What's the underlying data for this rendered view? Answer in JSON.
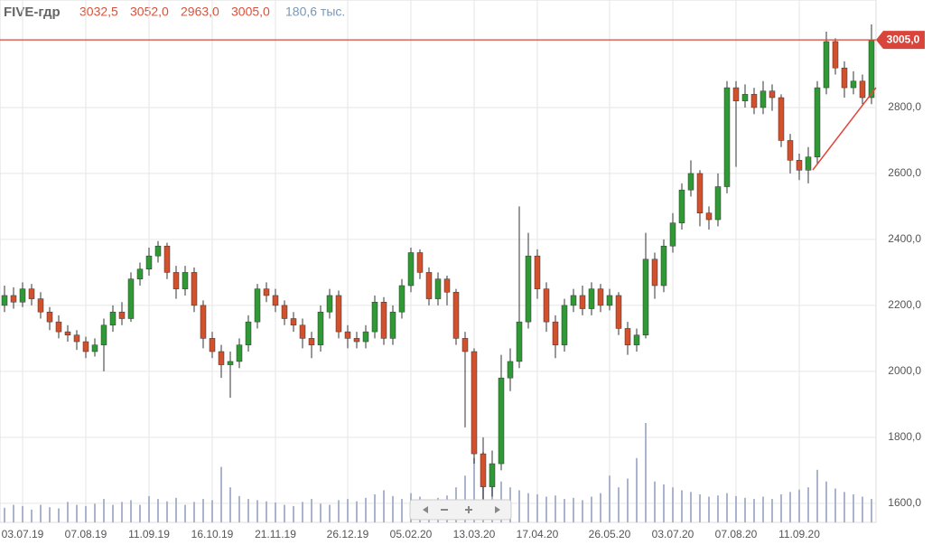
{
  "chart_data": {
    "type": "candlestick",
    "title": "FIVE-гдр",
    "header": {
      "open": {
        "value": 3032.5,
        "label": "3032,5"
      },
      "high": {
        "value": 3052.0,
        "label": "3052,0"
      },
      "low": {
        "value": 2963.0,
        "label": "2963,0"
      },
      "close": {
        "value": 3005.0,
        "label": "3005,0"
      },
      "volume": "180,6 тыс."
    },
    "last_price": {
      "value": 3005.0,
      "label": "3005,0"
    },
    "categories": [
      null,
      null,
      "03.07.19",
      null,
      null,
      null,
      null,
      null,
      null,
      "07.08.19",
      null,
      null,
      null,
      null,
      null,
      null,
      "11.09.19",
      null,
      null,
      null,
      null,
      null,
      null,
      "16.10.19",
      null,
      null,
      null,
      null,
      null,
      null,
      "21.11.19",
      null,
      null,
      null,
      null,
      null,
      null,
      null,
      "26.12.19",
      null,
      null,
      null,
      null,
      null,
      null,
      "05.02.20",
      null,
      null,
      null,
      null,
      null,
      null,
      "13.03.20",
      null,
      null,
      null,
      null,
      null,
      null,
      "17.04.20",
      null,
      null,
      null,
      null,
      null,
      null,
      null,
      "26.05.20",
      null,
      null,
      null,
      null,
      null,
      null,
      "03.07.20",
      null,
      null,
      null,
      null,
      null,
      null,
      "07.08.20",
      null,
      null,
      null,
      null,
      null,
      null,
      "11.09.20",
      null,
      null,
      null,
      null,
      null,
      null,
      null,
      null
    ],
    "open": [
      2200,
      2230,
      2210,
      2250,
      2220,
      2180,
      2150,
      2120,
      2110,
      2090,
      2060,
      2080,
      2140,
      2180,
      2160,
      2280,
      2310,
      2350,
      2380,
      2300,
      2250,
      2300,
      2200,
      2100,
      2060,
      2020,
      2030,
      2080,
      2150,
      2250,
      2230,
      2200,
      2160,
      2140,
      2100,
      2080,
      2180,
      2230,
      2120,
      2100,
      2090,
      2120,
      2210,
      2100,
      2180,
      2260,
      2360,
      2300,
      2220,
      2280,
      2240,
      2100,
      2060,
      1750,
      1650,
      1720,
      1980,
      2030,
      2150,
      2350,
      2250,
      2150,
      2080,
      2200,
      2230,
      2190,
      2250,
      2200,
      2230,
      2130,
      2080,
      2110,
      2340,
      2260,
      2380,
      2450,
      2550,
      2600,
      2480,
      2460,
      2560,
      2860,
      2820,
      2840,
      2800,
      2850,
      2830,
      2700,
      2640,
      2610,
      2650,
      2860,
      3000,
      2920,
      2860,
      2880,
      2830
    ],
    "high": [
      2260,
      2255,
      2270,
      2265,
      2240,
      2195,
      2170,
      2140,
      2125,
      2105,
      2100,
      2160,
      2200,
      2210,
      2300,
      2330,
      2375,
      2395,
      2390,
      2320,
      2320,
      2315,
      2215,
      2120,
      2080,
      2060,
      2100,
      2170,
      2265,
      2270,
      2250,
      2215,
      2180,
      2160,
      2120,
      2200,
      2250,
      2245,
      2140,
      2120,
      2140,
      2230,
      2225,
      2200,
      2280,
      2375,
      2370,
      2315,
      2300,
      2290,
      2250,
      2120,
      2070,
      1800,
      1760,
      2050,
      2070,
      2500,
      2420,
      2370,
      2270,
      2170,
      2220,
      2250,
      2260,
      2270,
      2265,
      2250,
      2240,
      2150,
      2130,
      2420,
      2360,
      2400,
      2480,
      2570,
      2640,
      2610,
      2500,
      2600,
      2880,
      2880,
      2870,
      2860,
      2880,
      2870,
      2840,
      2720,
      2660,
      2680,
      2880,
      3030,
      3010,
      2940,
      2910,
      2900,
      3052
    ],
    "low": [
      2180,
      2190,
      2195,
      2200,
      2160,
      2125,
      2100,
      2090,
      2065,
      2040,
      2045,
      2000,
      2120,
      2140,
      2150,
      2260,
      2290,
      2330,
      2280,
      2220,
      2230,
      2180,
      2070,
      2040,
      1980,
      1920,
      2010,
      2060,
      2130,
      2210,
      2180,
      2140,
      2120,
      2070,
      2040,
      2060,
      2160,
      2100,
      2070,
      2070,
      2070,
      2100,
      2080,
      2080,
      2160,
      2240,
      2280,
      2200,
      2200,
      2200,
      2080,
      1830,
      1720,
      1610,
      1620,
      1700,
      1940,
      2010,
      2130,
      2220,
      2120,
      2040,
      2060,
      2180,
      2170,
      2170,
      2180,
      2185,
      2110,
      2050,
      2060,
      2100,
      2220,
      2240,
      2360,
      2430,
      2530,
      2440,
      2430,
      2440,
      2540,
      2620,
      2800,
      2780,
      2780,
      2790,
      2680,
      2600,
      2580,
      2570,
      2630,
      2840,
      2900,
      2830,
      2840,
      2810,
      2810
    ],
    "close": [
      2230,
      2210,
      2250,
      2220,
      2180,
      2150,
      2120,
      2110,
      2090,
      2060,
      2080,
      2140,
      2180,
      2160,
      2280,
      2310,
      2350,
      2380,
      2300,
      2250,
      2300,
      2200,
      2100,
      2060,
      2020,
      2030,
      2080,
      2150,
      2250,
      2230,
      2200,
      2160,
      2140,
      2100,
      2080,
      2180,
      2230,
      2120,
      2100,
      2090,
      2120,
      2210,
      2100,
      2180,
      2260,
      2360,
      2300,
      2220,
      2280,
      2240,
      2100,
      2060,
      1750,
      1650,
      1720,
      1980,
      2030,
      2150,
      2350,
      2250,
      2150,
      2080,
      2200,
      2230,
      2190,
      2250,
      2200,
      2230,
      2130,
      2080,
      2110,
      2340,
      2260,
      2380,
      2450,
      2550,
      2600,
      2480,
      2460,
      2560,
      2860,
      2820,
      2840,
      2800,
      2850,
      2830,
      2700,
      2640,
      2610,
      2650,
      2860,
      3000,
      2920,
      2860,
      2880,
      2830,
      3005
    ],
    "volume": [
      25,
      30,
      28,
      22,
      30,
      26,
      24,
      35,
      30,
      28,
      32,
      40,
      30,
      35,
      38,
      30,
      45,
      40,
      36,
      42,
      30,
      35,
      40,
      38,
      95,
      60,
      45,
      40,
      38,
      36,
      34,
      30,
      28,
      35,
      40,
      32,
      30,
      38,
      40,
      36,
      42,
      48,
      55,
      45,
      40,
      50,
      44,
      38,
      42,
      46,
      60,
      80,
      110,
      120,
      95,
      70,
      60,
      55,
      50,
      48,
      44,
      46,
      40,
      42,
      38,
      44,
      50,
      80,
      60,
      75,
      110,
      170,
      70,
      65,
      60,
      55,
      52,
      48,
      44,
      46,
      50,
      45,
      42,
      40,
      44,
      40,
      48,
      52,
      56,
      60,
      90,
      70,
      58,
      52,
      48,
      44,
      40
    ],
    "bull_color": "#2f9a35",
    "bear_color": "#d2502c",
    "volume_color": "#aab4cc",
    "ylim": [
      1542,
      3126
    ],
    "yticks": [
      {
        "value": 1600,
        "label": "1600,0"
      },
      {
        "value": 1800,
        "label": "1800,0"
      },
      {
        "value": 2000,
        "label": "2000,0"
      },
      {
        "value": 2200,
        "label": "2200,0"
      },
      {
        "value": 2400,
        "label": "2400,0"
      },
      {
        "value": 2600,
        "label": "2600,0"
      },
      {
        "value": 2800,
        "label": "2800,0"
      }
    ],
    "grid": true
  }
}
